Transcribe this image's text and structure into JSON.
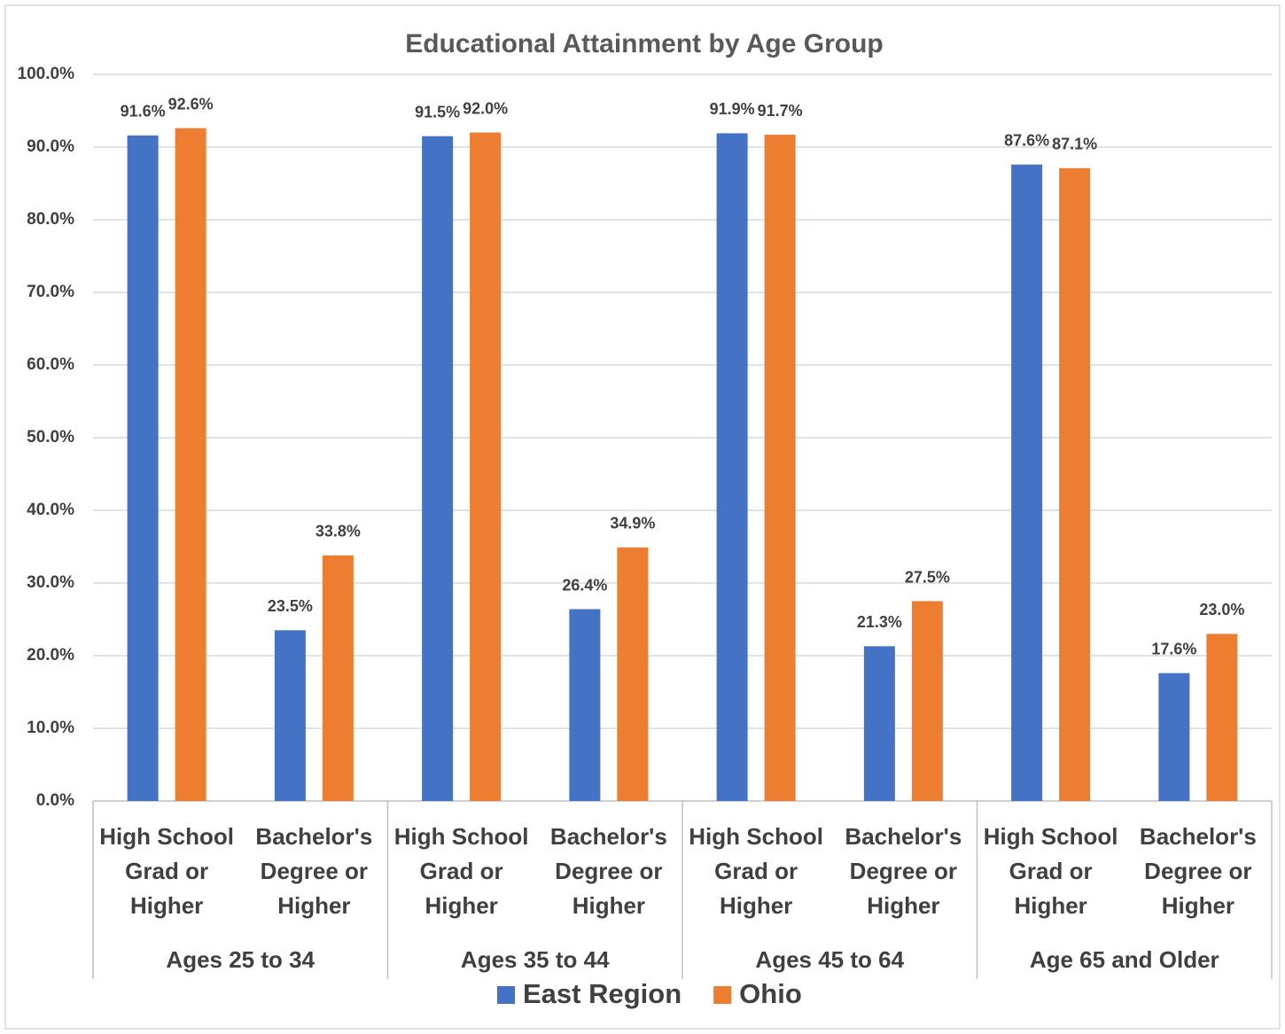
{
  "chart_data": {
    "type": "bar",
    "title": "Educational Attainment by Age Group",
    "categories": [
      "High School Grad or Higher",
      "Bachelor's Degree or Higher",
      "High School Grad or Higher",
      "Bachelor's Degree or Higher",
      "High School Grad or Higher",
      "Bachelor's Degree or Higher",
      "High School Grad or Higher",
      "Bachelor's Degree or Higher"
    ],
    "groups": [
      "Ages 25 to 34",
      "Ages 35 to 44",
      "Ages 45 to 64",
      "Age 65 and Older"
    ],
    "series": [
      {
        "name": "East Region",
        "color": "#4472c4",
        "values": [
          91.6,
          23.5,
          91.5,
          26.4,
          91.9,
          21.3,
          87.6,
          17.6
        ],
        "value_labels": [
          "91.6%",
          "23.5%",
          "91.5%",
          "26.4%",
          "91.9%",
          "21.3%",
          "87.6%",
          "17.6%"
        ]
      },
      {
        "name": "Ohio",
        "color": "#ed7d31",
        "values": [
          92.6,
          33.8,
          92.0,
          34.9,
          91.7,
          27.5,
          87.1,
          23.0
        ],
        "value_labels": [
          "92.6%",
          "33.8%",
          "92.0%",
          "34.9%",
          "91.7%",
          "27.5%",
          "87.1%",
          "23.0%"
        ]
      }
    ],
    "ylim": [
      0,
      100
    ],
    "yticks": [
      {
        "value": 0,
        "label": "0.0%"
      },
      {
        "value": 10,
        "label": "10.0%"
      },
      {
        "value": 20,
        "label": "20.0%"
      },
      {
        "value": 30,
        "label": "30.0%"
      },
      {
        "value": 40,
        "label": "40.0%"
      },
      {
        "value": 50,
        "label": "50.0%"
      },
      {
        "value": 60,
        "label": "60.0%"
      },
      {
        "value": 70,
        "label": "70.0%"
      },
      {
        "value": 80,
        "label": "80.0%"
      },
      {
        "value": 90,
        "label": "90.0%"
      },
      {
        "value": 100,
        "label": "100.0%"
      }
    ],
    "grid": true,
    "legend": "bottom"
  }
}
